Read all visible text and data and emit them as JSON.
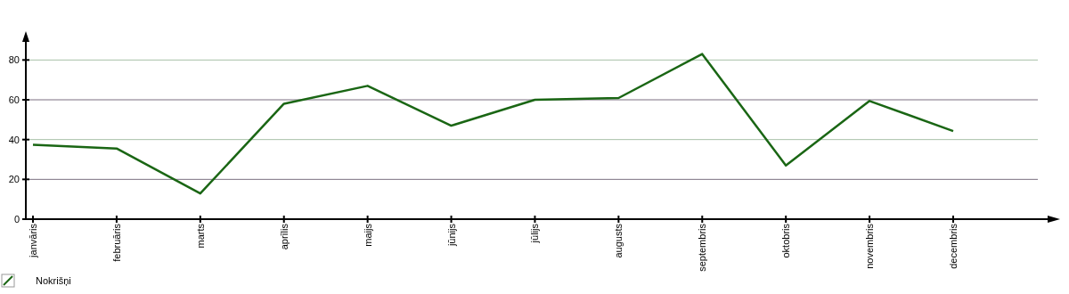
{
  "chart_data": {
    "type": "line",
    "categories": [
      "janvāris",
      "februāris",
      "marts",
      "aprīlis",
      "maijs",
      "jūnijs",
      "jūlijs",
      "augusts",
      "septembris",
      "oktobris",
      "novembris",
      "decembris"
    ],
    "series": [
      {
        "name": "Nokrišņi",
        "color": "#1a6614",
        "values": [
          37.4,
          35.5,
          12.9,
          58,
          67,
          47,
          60,
          60.9,
          83,
          27,
          59.4,
          44.3
        ]
      }
    ],
    "ylim": [
      0,
      90
    ],
    "yticks": [
      0,
      20,
      40,
      60,
      80
    ],
    "grid": "y",
    "legend": "bottom left",
    "marker": "none",
    "line_style": "solid"
  }
}
